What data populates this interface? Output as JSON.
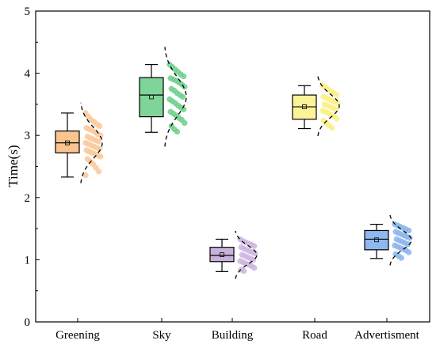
{
  "chart_data": {
    "type": "box",
    "title": "",
    "xlabel": "",
    "ylabel": "Time(s)",
    "ylim": [
      0,
      5
    ],
    "yticks": [
      0,
      1,
      2,
      3,
      4,
      5
    ],
    "grid": false,
    "legend": "none",
    "categories": [
      "Greening",
      "Sky",
      "Building",
      "Road",
      "Advertisment"
    ],
    "series": [
      {
        "category": "Greening",
        "color": "#f9c48e",
        "point_color": "#fbc99a",
        "whisker_low": 2.33,
        "q1": 2.72,
        "median": 2.88,
        "q3": 3.07,
        "whisker_high": 3.36,
        "mean": 2.88,
        "points": [
          3.36,
          3.3,
          3.25,
          3.22,
          3.18,
          3.15,
          3.12,
          3.1,
          3.08,
          3.05,
          3.02,
          3.0,
          2.98,
          2.96,
          2.94,
          2.92,
          2.9,
          2.88,
          2.86,
          2.84,
          2.82,
          2.8,
          2.78,
          2.76,
          2.74,
          2.72,
          2.7,
          2.68,
          2.66,
          2.62,
          2.58,
          2.54,
          2.48,
          2.42,
          2.36
        ]
      },
      {
        "category": "Sky",
        "color": "#7fd49a",
        "point_color": "#6fcf8c",
        "whisker_low": 3.05,
        "q1": 3.3,
        "median": 3.65,
        "q3": 3.93,
        "whisker_high": 4.14,
        "mean": 3.62,
        "points": [
          4.14,
          4.1,
          4.06,
          4.02,
          3.98,
          3.95,
          3.92,
          3.9,
          3.88,
          3.85,
          3.82,
          3.78,
          3.75,
          3.72,
          3.68,
          3.65,
          3.62,
          3.58,
          3.55,
          3.52,
          3.48,
          3.45,
          3.42,
          3.38,
          3.35,
          3.32,
          3.28,
          3.25,
          3.2,
          3.15,
          3.1,
          3.06
        ]
      },
      {
        "category": "Building",
        "color": "#c9b3dc",
        "point_color": "#cdb6e0",
        "whisker_low": 0.81,
        "q1": 0.97,
        "median": 1.07,
        "q3": 1.2,
        "whisker_high": 1.33,
        "mean": 1.08,
        "points": [
          1.33,
          1.3,
          1.28,
          1.26,
          1.24,
          1.22,
          1.2,
          1.18,
          1.16,
          1.14,
          1.12,
          1.1,
          1.08,
          1.06,
          1.04,
          1.02,
          1.0,
          0.98,
          0.96,
          0.94,
          0.92,
          0.9,
          0.87,
          0.84,
          0.82
        ]
      },
      {
        "category": "Road",
        "color": "#fdf49a",
        "point_color": "#fbf085",
        "whisker_low": 3.11,
        "q1": 3.26,
        "median": 3.46,
        "q3": 3.65,
        "whisker_high": 3.8,
        "mean": 3.46,
        "points": [
          3.8,
          3.77,
          3.74,
          3.71,
          3.68,
          3.65,
          3.62,
          3.6,
          3.58,
          3.56,
          3.54,
          3.52,
          3.5,
          3.48,
          3.46,
          3.44,
          3.42,
          3.4,
          3.38,
          3.36,
          3.33,
          3.3,
          3.27,
          3.24,
          3.2,
          3.16,
          3.12
        ]
      },
      {
        "category": "Advertisment",
        "color": "#8fb8ee",
        "point_color": "#8ab6ec",
        "whisker_low": 1.02,
        "q1": 1.16,
        "median": 1.33,
        "q3": 1.47,
        "whisker_high": 1.57,
        "mean": 1.32,
        "points": [
          1.57,
          1.55,
          1.53,
          1.51,
          1.49,
          1.47,
          1.45,
          1.43,
          1.41,
          1.39,
          1.37,
          1.35,
          1.33,
          1.31,
          1.29,
          1.27,
          1.25,
          1.23,
          1.21,
          1.19,
          1.17,
          1.15,
          1.12,
          1.09,
          1.06,
          1.03
        ]
      }
    ]
  }
}
